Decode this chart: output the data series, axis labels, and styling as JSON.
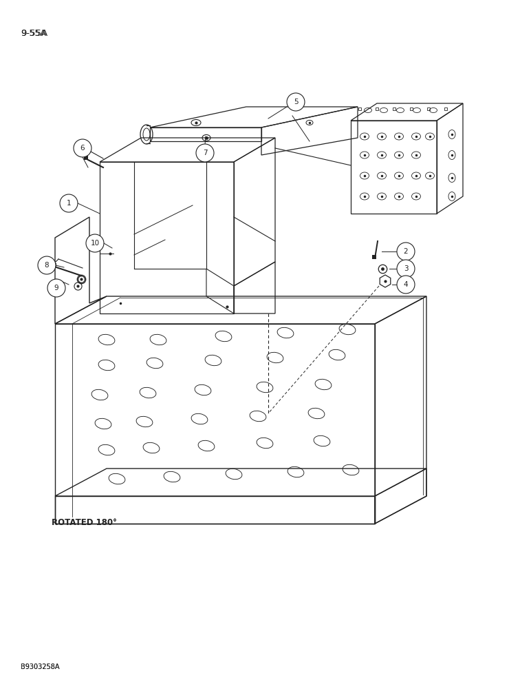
{
  "page_label": "9-55A",
  "bottom_label": "B9303258A",
  "rotated_label": "ROTATED 180°",
  "bg": "#ffffff",
  "lc": "#222222",
  "fig_w": 7.72,
  "fig_h": 10.0,
  "dpi": 100
}
